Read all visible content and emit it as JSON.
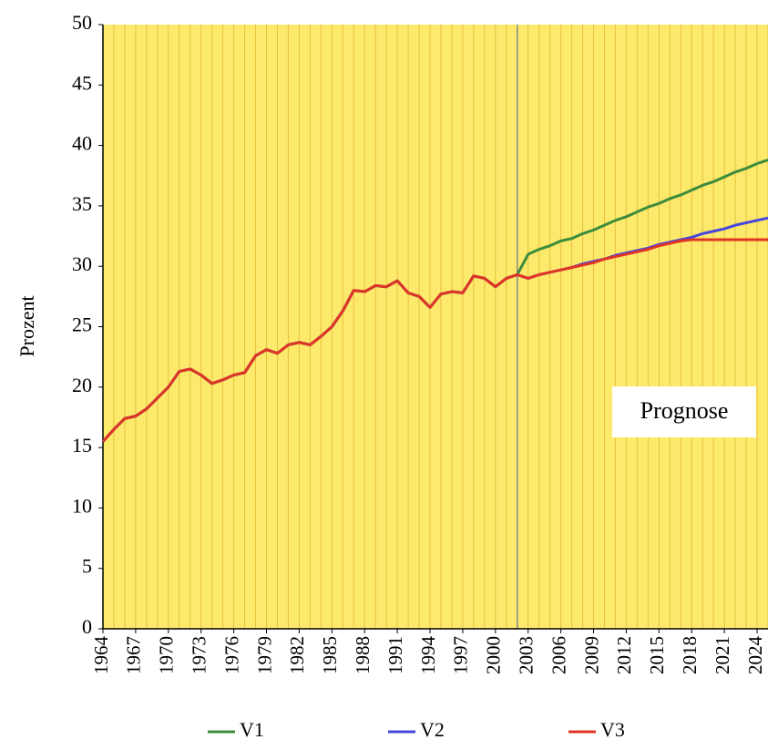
{
  "chart_data": {
    "type": "line",
    "y_label": "Prozent",
    "annotation": "Prognose",
    "forecast_start": 2002,
    "x": [
      1964,
      1965,
      1966,
      1967,
      1968,
      1969,
      1970,
      1971,
      1972,
      1973,
      1974,
      1975,
      1976,
      1977,
      1978,
      1979,
      1980,
      1981,
      1982,
      1983,
      1984,
      1985,
      1986,
      1987,
      1988,
      1989,
      1990,
      1991,
      1992,
      1993,
      1994,
      1995,
      1996,
      1997,
      1998,
      1999,
      2000,
      2001,
      2002,
      2003,
      2004,
      2005,
      2006,
      2007,
      2008,
      2009,
      2010,
      2011,
      2012,
      2013,
      2014,
      2015,
      2016,
      2017,
      2018,
      2019,
      2020,
      2021,
      2022,
      2023,
      2024,
      2025
    ],
    "series": [
      {
        "name": "V1",
        "color": "#3c8c3c",
        "values": [
          15.5,
          16.5,
          17.4,
          17.6,
          18.2,
          19.1,
          20.0,
          21.3,
          21.5,
          21.0,
          20.3,
          20.6,
          21.0,
          21.2,
          22.6,
          23.1,
          22.8,
          23.5,
          23.7,
          23.5,
          24.2,
          25.0,
          26.3,
          28.0,
          27.9,
          28.4,
          28.3,
          28.8,
          27.8,
          27.5,
          26.6,
          27.7,
          27.9,
          27.8,
          29.2,
          29.0,
          28.3,
          29.0,
          29.3,
          31.0,
          31.4,
          31.7,
          32.1,
          32.3,
          32.7,
          33.0,
          33.4,
          33.8,
          34.1,
          34.5,
          34.9,
          35.2,
          35.6,
          35.9,
          36.3,
          36.7,
          37.0,
          37.4,
          37.8,
          38.1,
          38.5,
          38.8
        ]
      },
      {
        "name": "V2",
        "color": "#4646dc",
        "values": [
          15.5,
          16.5,
          17.4,
          17.6,
          18.2,
          19.1,
          20.0,
          21.3,
          21.5,
          21.0,
          20.3,
          20.6,
          21.0,
          21.2,
          22.6,
          23.1,
          22.8,
          23.5,
          23.7,
          23.5,
          24.2,
          25.0,
          26.3,
          28.0,
          27.9,
          28.4,
          28.3,
          28.8,
          27.8,
          27.5,
          26.6,
          27.7,
          27.9,
          27.8,
          29.2,
          29.0,
          28.3,
          29.0,
          29.3,
          29.0,
          29.3,
          29.5,
          29.7,
          29.9,
          30.2,
          30.4,
          30.6,
          30.9,
          31.1,
          31.3,
          31.5,
          31.8,
          32.0,
          32.2,
          32.4,
          32.7,
          32.9,
          33.1,
          33.4,
          33.6,
          33.8,
          34.0
        ]
      },
      {
        "name": "V3",
        "color": "#e03424",
        "values": [
          15.5,
          16.5,
          17.4,
          17.6,
          18.2,
          19.1,
          20.0,
          21.3,
          21.5,
          21.0,
          20.3,
          20.6,
          21.0,
          21.2,
          22.6,
          23.1,
          22.8,
          23.5,
          23.7,
          23.5,
          24.2,
          25.0,
          26.3,
          28.0,
          27.9,
          28.4,
          28.3,
          28.8,
          27.8,
          27.5,
          26.6,
          27.7,
          27.9,
          27.8,
          29.2,
          29.0,
          28.3,
          29.0,
          29.3,
          29.0,
          29.3,
          29.5,
          29.7,
          29.9,
          30.1,
          30.3,
          30.6,
          30.8,
          31.0,
          31.2,
          31.4,
          31.7,
          31.9,
          32.1,
          32.2,
          32.2,
          32.2,
          32.2,
          32.2,
          32.2,
          32.2,
          32.2
        ]
      }
    ],
    "xlim": [
      1964,
      2025
    ],
    "xticks": [
      1964,
      1967,
      1970,
      1973,
      1976,
      1979,
      1982,
      1985,
      1988,
      1991,
      1994,
      1997,
      2000,
      2003,
      2006,
      2009,
      2012,
      2015,
      2018,
      2021,
      2024
    ],
    "ylim": [
      0,
      50
    ],
    "yticks": [
      0,
      5,
      10,
      15,
      20,
      25,
      30,
      35,
      40,
      45,
      50
    ],
    "grid": true,
    "background": "#fde96c"
  }
}
